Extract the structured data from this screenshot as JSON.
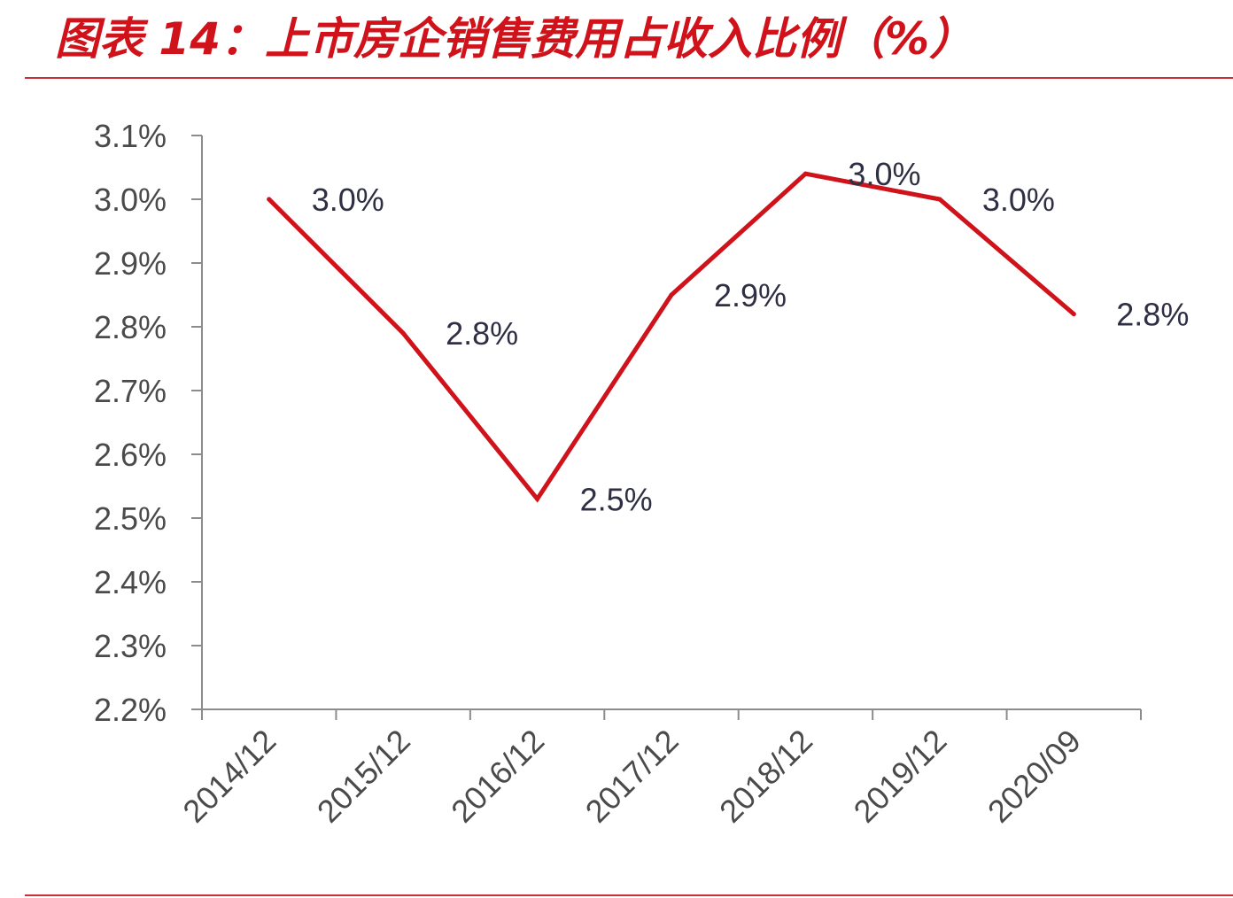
{
  "header": {
    "title": "图表 14：上市房企销售费用占收入比例（%）"
  },
  "chart_data": {
    "type": "line",
    "categories": [
      "2014/12",
      "2015/12",
      "2016/12",
      "2017/12",
      "2018/12",
      "2019/12",
      "2020/09"
    ],
    "series": [
      {
        "values": [
          3.0,
          2.79,
          2.53,
          2.85,
          3.04,
          3.0,
          2.82
        ],
        "labels": [
          "3.0%",
          "2.8%",
          "2.5%",
          "2.9%",
          "3.0%",
          "3.0%",
          "2.8%"
        ],
        "color": "#d0121b"
      }
    ],
    "ylim": [
      2.2,
      3.1
    ],
    "yticks": [
      "2.2%",
      "2.3%",
      "2.4%",
      "2.5%",
      "2.6%",
      "2.7%",
      "2.8%",
      "2.9%",
      "3.0%",
      "3.1%"
    ],
    "xlabel": "",
    "ylabel": "",
    "grid": false,
    "legend": "none"
  }
}
